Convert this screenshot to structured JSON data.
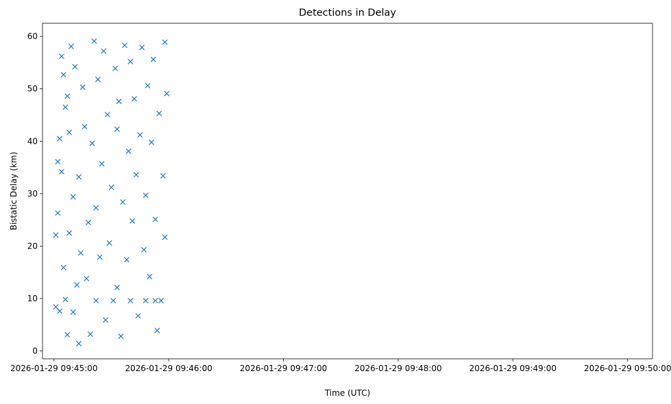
{
  "chart_data": {
    "type": "scatter",
    "title": "Detections in Delay",
    "xlabel": "Time (UTC)",
    "ylabel": "Bistatic Delay (km)",
    "marker": "x",
    "marker_color": "#1f77b4",
    "grid": false,
    "x_ticks": [
      "2026-01-29 09:45:00",
      "2026-01-29 09:46:00",
      "2026-01-29 09:47:00",
      "2026-01-29 09:48:00",
      "2026-01-29 09:49:00",
      "2026-01-29 09:50:00"
    ],
    "y_ticks": [
      "0",
      "10",
      "20",
      "30",
      "40",
      "50",
      "60"
    ],
    "xlim": [
      "2026-01-29 09:44:54",
      "2026-01-29 09:50:13"
    ],
    "ylim": [
      -1.5,
      62.5
    ],
    "series": [
      {
        "points": [
          [
            "09:45:01",
            22.1
          ],
          [
            "09:45:01",
            8.4
          ],
          [
            "09:45:02",
            36.1
          ],
          [
            "09:45:02",
            26.3
          ],
          [
            "09:45:03",
            40.5
          ],
          [
            "09:45:03",
            7.6
          ],
          [
            "09:45:04",
            34.2
          ],
          [
            "09:45:04",
            56.2
          ],
          [
            "09:45:05",
            52.7
          ],
          [
            "09:45:05",
            15.9
          ],
          [
            "09:45:06",
            9.8
          ],
          [
            "09:45:06",
            46.5
          ],
          [
            "09:45:07",
            3.1
          ],
          [
            "09:45:07",
            48.6
          ],
          [
            "09:45:08",
            41.7
          ],
          [
            "09:45:08",
            22.5
          ],
          [
            "09:45:09",
            58.1
          ],
          [
            "09:45:10",
            7.4
          ],
          [
            "09:45:10",
            29.4
          ],
          [
            "09:45:11",
            54.2
          ],
          [
            "09:45:12",
            12.6
          ],
          [
            "09:45:13",
            1.4
          ],
          [
            "09:45:13",
            33.2
          ],
          [
            "09:45:14",
            18.7
          ],
          [
            "09:45:15",
            50.3
          ],
          [
            "09:45:16",
            42.8
          ],
          [
            "09:45:17",
            13.8
          ],
          [
            "09:45:18",
            24.5
          ],
          [
            "09:45:19",
            3.2
          ],
          [
            "09:45:20",
            39.6
          ],
          [
            "09:45:21",
            59.1
          ],
          [
            "09:45:22",
            9.6
          ],
          [
            "09:45:22",
            27.3
          ],
          [
            "09:45:23",
            51.8
          ],
          [
            "09:45:24",
            17.9
          ],
          [
            "09:45:25",
            35.7
          ],
          [
            "09:45:26",
            57.2
          ],
          [
            "09:45:27",
            5.9
          ],
          [
            "09:45:28",
            45.1
          ],
          [
            "09:45:29",
            20.6
          ],
          [
            "09:45:30",
            31.2
          ],
          [
            "09:45:31",
            9.6
          ],
          [
            "09:45:32",
            53.9
          ],
          [
            "09:45:33",
            42.3
          ],
          [
            "09:45:33",
            12.1
          ],
          [
            "09:45:34",
            47.6
          ],
          [
            "09:45:35",
            2.8
          ],
          [
            "09:45:36",
            28.4
          ],
          [
            "09:45:37",
            58.3
          ],
          [
            "09:45:38",
            17.4
          ],
          [
            "09:45:39",
            38.1
          ],
          [
            "09:45:40",
            9.6
          ],
          [
            "09:45:40",
            55.2
          ],
          [
            "09:45:41",
            24.8
          ],
          [
            "09:45:42",
            48.1
          ],
          [
            "09:45:43",
            33.6
          ],
          [
            "09:45:44",
            6.7
          ],
          [
            "09:45:45",
            41.2
          ],
          [
            "09:45:46",
            57.9
          ],
          [
            "09:45:47",
            19.3
          ],
          [
            "09:45:48",
            9.6
          ],
          [
            "09:45:48",
            29.7
          ],
          [
            "09:45:49",
            50.6
          ],
          [
            "09:45:50",
            14.2
          ],
          [
            "09:45:51",
            39.8
          ],
          [
            "09:45:52",
            55.6
          ],
          [
            "09:45:53",
            9.6
          ],
          [
            "09:45:53",
            25.1
          ],
          [
            "09:45:54",
            3.9
          ],
          [
            "09:45:55",
            45.3
          ],
          [
            "09:45:56",
            9.6
          ],
          [
            "09:45:57",
            33.4
          ],
          [
            "09:45:58",
            58.9
          ],
          [
            "09:45:58",
            21.7
          ],
          [
            "09:45:59",
            49.1
          ]
        ]
      }
    ]
  }
}
